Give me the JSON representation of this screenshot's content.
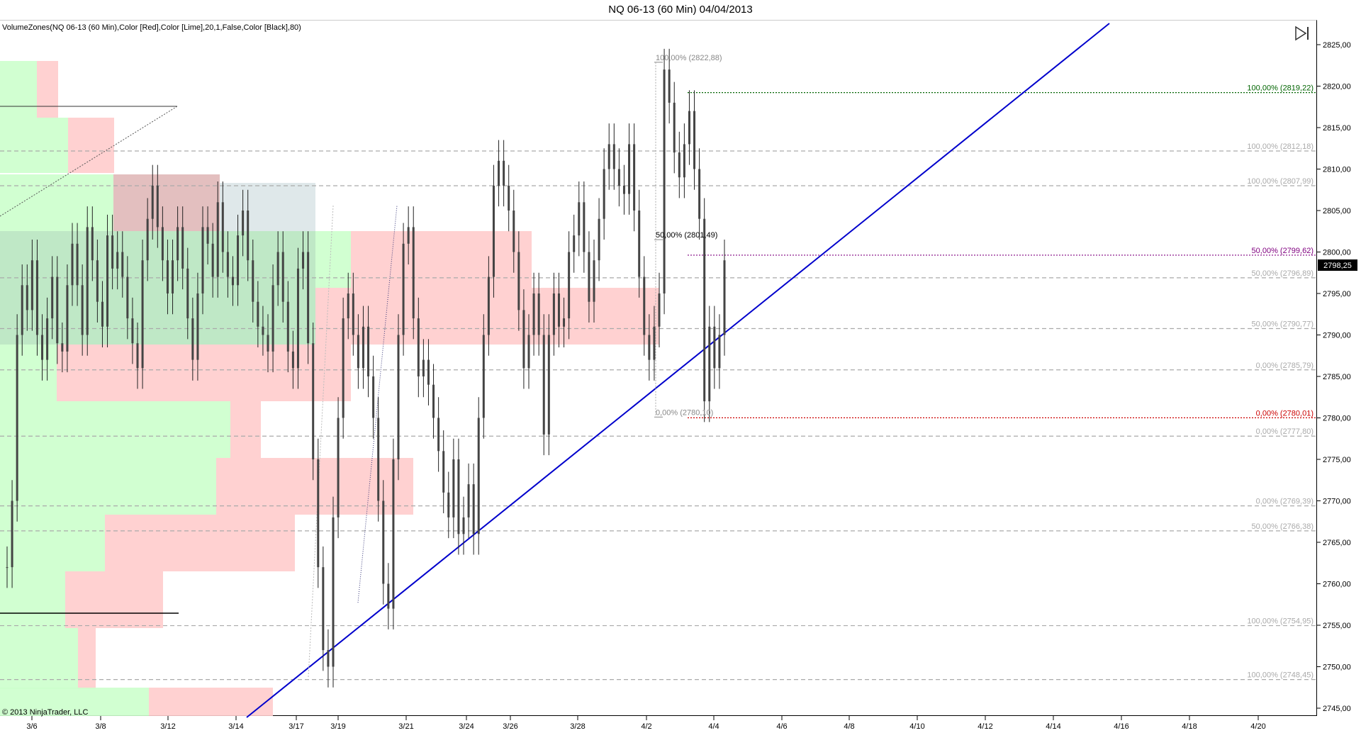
{
  "title": "NQ 06-13 (60 Min)  04/04/2013",
  "indicator_label": "VolumeZones(NQ 06-13 (60 Min),Color [Red],Color [Lime],20,1,False,Color [Black],80)",
  "copyright": "© 2013 NinjaTrader, LLC",
  "icons": {
    "scroll_end": "skip-to-end-icon"
  },
  "current_price": "2798,25",
  "chart_data": {
    "type": "candlestick",
    "y_axis": {
      "ticks": [
        "2825,00",
        "2820,00",
        "2815,00",
        "2810,00",
        "2805,00",
        "2800,00",
        "2795,00",
        "2790,00",
        "2785,00",
        "2780,00",
        "2775,00",
        "2770,00",
        "2765,00",
        "2760,00",
        "2755,00",
        "2750,00",
        "2745,00"
      ],
      "range": [
        2744,
        2828
      ]
    },
    "x_axis": {
      "ticks": [
        "3/6",
        "3/8",
        "3/12",
        "3/14",
        "3/17",
        "3/19",
        "3/21",
        "3/24",
        "3/26",
        "3/28",
        "4/2",
        "4/4",
        "4/6",
        "4/8",
        "4/10",
        "4/12",
        "4/14",
        "4/16",
        "4/18",
        "4/20"
      ]
    },
    "fib_levels": [
      {
        "label": "100,00% (2819,22)",
        "price": 2819.22,
        "color": "#006400"
      },
      {
        "label": "100,00% (2812,18)",
        "price": 2812.18,
        "color": "#aaaaaa"
      },
      {
        "label": "100,00% (2807,99)",
        "price": 2807.99,
        "color": "#aaaaaa"
      },
      {
        "label": "50,00% (2799,62)",
        "price": 2799.62,
        "color": "#800080"
      },
      {
        "label": "50,00% (2796,89)",
        "price": 2796.89,
        "color": "#aaaaaa"
      },
      {
        "label": "50,00% (2790,77)",
        "price": 2790.77,
        "color": "#aaaaaa"
      },
      {
        "label": "0,00% (2785,79)",
        "price": 2785.79,
        "color": "#aaaaaa"
      },
      {
        "label": "0,00% (2780,01)",
        "price": 2780.01,
        "color": "#cc0000"
      },
      {
        "label": "0,00% (2777,80)",
        "price": 2777.8,
        "color": "#aaaaaa"
      },
      {
        "label": "0,00% (2769,39)",
        "price": 2769.39,
        "color": "#aaaaaa"
      },
      {
        "label": "50,00% (2766,38)",
        "price": 2766.38,
        "color": "#aaaaaa"
      },
      {
        "label": "100,00% (2754,95)",
        "price": 2754.95,
        "color": "#aaaaaa"
      },
      {
        "label": "100,00% (2748,45)",
        "price": 2748.45,
        "color": "#aaaaaa"
      }
    ],
    "swing_labels": [
      {
        "label": "100,00% (2822,88)",
        "price": 2822.88
      },
      {
        "label": "50,00% (2801,49)",
        "price": 2801.49
      },
      {
        "label": "0,00% (2780,10)",
        "price": 2780.1
      }
    ],
    "price_series": [
      2762,
      2770,
      2790,
      2796,
      2793,
      2799,
      2790,
      2787,
      2792,
      2797,
      2789,
      2788,
      2796,
      2801,
      2796,
      2790,
      2803,
      2799,
      2794,
      2791,
      2802,
      2798,
      2800,
      2797,
      2792,
      2789,
      2786,
      2799,
      2804,
      2808,
      2803,
      2799,
      2795,
      2799,
      2803,
      2798,
      2792,
      2787,
      2795,
      2803,
      2801,
      2797,
      2806,
      2800,
      2797,
      2796,
      2802,
      2805,
      2799,
      2794,
      2791,
      2790,
      2788,
      2796,
      2800,
      2794,
      2788,
      2786,
      2798,
      2800,
      2789,
      2775,
      2762,
      2752,
      2750,
      2768,
      2780,
      2792,
      2795,
      2790,
      2786,
      2791,
      2785,
      2780,
      2770,
      2760,
      2757,
      2775,
      2790,
      2801,
      2803,
      2792,
      2785,
      2787,
      2784,
      2780,
      2776,
      2771,
      2768,
      2775,
      2766,
      2768,
      2772,
      2766,
      2780,
      2790,
      2797,
      2808,
      2811,
      2808,
      2805,
      2800,
      2793,
      2786,
      2790,
      2795,
      2790,
      2778,
      2790,
      2795,
      2791,
      2792,
      2800,
      2802,
      2806,
      2800,
      2794,
      2799,
      2804,
      2810,
      2813,
      2810,
      2808,
      2807,
      2813,
      2805,
      2797,
      2790,
      2787,
      2791,
      2795,
      2822,
      2818,
      2812,
      2809,
      2813,
      2817,
      2810,
      2804,
      2782,
      2791,
      2786,
      2790,
      2799
    ]
  }
}
